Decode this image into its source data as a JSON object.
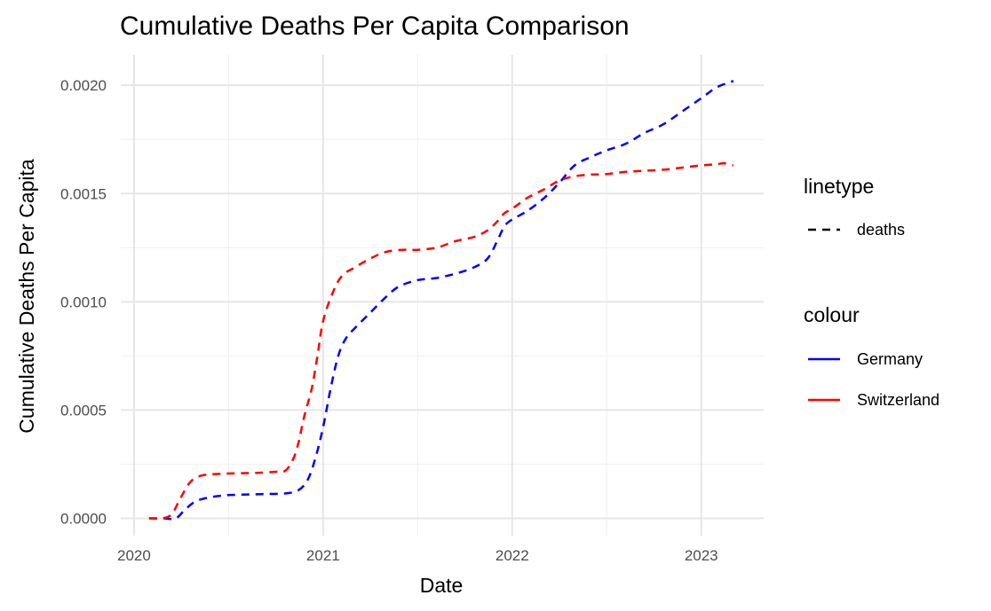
{
  "chart_data": {
    "type": "line",
    "title": "Cumulative Deaths Per Capita Comparison",
    "xlabel": "Date",
    "ylabel": "Cumulative Deaths Per Capita",
    "x_ticks": [
      2020,
      2021,
      2022,
      2023
    ],
    "x_tick_labels": [
      "2020",
      "2021",
      "2022",
      "2023"
    ],
    "y_ticks": [
      0,
      0.0005,
      0.001,
      0.0015,
      0.002
    ],
    "y_tick_labels": [
      "0.0000",
      "0.0005",
      "0.0010",
      "0.0015",
      "0.0020"
    ],
    "xlim": [
      2019.93,
      2023.33
    ],
    "ylim": [
      -8e-05,
      0.00214
    ],
    "grid": true,
    "legend_placement": "right",
    "linetype_legend": {
      "title": "linetype",
      "entries": [
        "deaths"
      ]
    },
    "colour_legend": {
      "title": "colour",
      "entries": [
        "Germany",
        "Switzerland"
      ]
    },
    "series": [
      {
        "name": "Germany",
        "color": "#0000ff",
        "linetype": "dashed",
        "x": [
          2020.08,
          2020.15,
          2020.22,
          2020.27,
          2020.33,
          2020.42,
          2020.5,
          2020.6,
          2020.7,
          2020.8,
          2020.87,
          2020.92,
          2020.96,
          2021.0,
          2021.04,
          2021.08,
          2021.12,
          2021.17,
          2021.25,
          2021.33,
          2021.4,
          2021.5,
          2021.6,
          2021.7,
          2021.8,
          2021.87,
          2021.92,
          2021.96,
          2022.0,
          2022.08,
          2022.17,
          2022.25,
          2022.33,
          2022.42,
          2022.5,
          2022.6,
          2022.7,
          2022.8,
          2022.9,
          2023.0,
          2023.08,
          2023.17
        ],
        "values": [
          0.0,
          0.0,
          0.0,
          4e-05,
          8e-05,
          0.0001,
          0.000107,
          0.00011,
          0.000112,
          0.000115,
          0.00013,
          0.00018,
          0.00028,
          0.00042,
          0.0006,
          0.00075,
          0.00083,
          0.00088,
          0.00095,
          0.00102,
          0.00107,
          0.0011,
          0.00111,
          0.00113,
          0.00116,
          0.0012,
          0.00128,
          0.00135,
          0.00138,
          0.00142,
          0.00148,
          0.00155,
          0.00163,
          0.00167,
          0.0017,
          0.00173,
          0.00178,
          0.00182,
          0.00188,
          0.00194,
          0.00199,
          0.00202
        ]
      },
      {
        "name": "Switzerland",
        "color": "#ff0000",
        "linetype": "dashed",
        "x": [
          2020.08,
          2020.15,
          2020.2,
          2020.25,
          2020.3,
          2020.36,
          2020.45,
          2020.55,
          2020.65,
          2020.75,
          2020.8,
          2020.84,
          2020.87,
          2020.9,
          2020.94,
          2020.97,
          2021.0,
          2021.05,
          2021.1,
          2021.17,
          2021.25,
          2021.33,
          2021.42,
          2021.5,
          2021.6,
          2021.7,
          2021.8,
          2021.87,
          2021.92,
          2021.96,
          2022.0,
          2022.08,
          2022.17,
          2022.25,
          2022.33,
          2022.42,
          2022.5,
          2022.6,
          2022.7,
          2022.8,
          2022.9,
          2023.0,
          2023.08,
          2023.12,
          2023.17
        ],
        "values": [
          0.0,
          0.0,
          2e-05,
          0.0001,
          0.00017,
          0.000198,
          0.000205,
          0.000208,
          0.00021,
          0.000215,
          0.00022,
          0.00027,
          0.00035,
          0.00047,
          0.0006,
          0.00075,
          0.00091,
          0.00104,
          0.00112,
          0.00116,
          0.0012,
          0.00123,
          0.00124,
          0.00124,
          0.00125,
          0.00128,
          0.0013,
          0.00133,
          0.00137,
          0.00141,
          0.00143,
          0.00148,
          0.00152,
          0.00156,
          0.00158,
          0.001588,
          0.00159,
          0.0016,
          0.001605,
          0.00161,
          0.00162,
          0.00163,
          0.001635,
          0.00164,
          0.00163
        ]
      }
    ]
  }
}
